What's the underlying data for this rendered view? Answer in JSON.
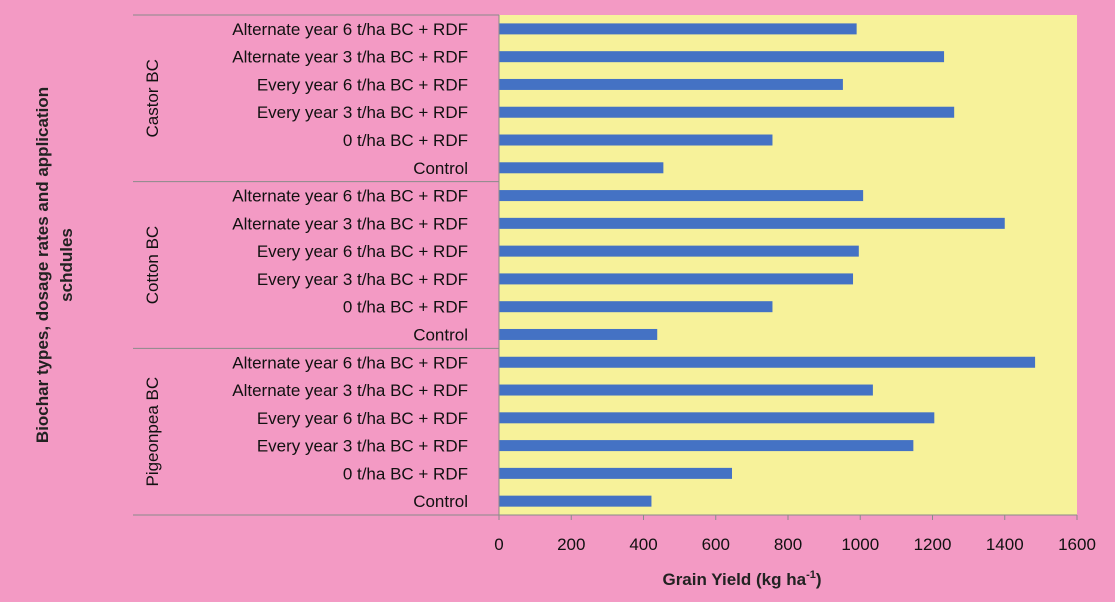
{
  "chart_data": {
    "type": "bar",
    "orientation": "horizontal",
    "title": "",
    "xlabel": "Grain Yield (kg ha",
    "xlabel_superscript": "-1",
    "xlabel_suffix": ")",
    "ylabel_line1": "Biochar types, dosage rates  and application",
    "ylabel_line2": "schdules",
    "xlim": [
      0,
      1600
    ],
    "xticks": [
      0,
      200,
      400,
      600,
      800,
      1000,
      1200,
      1400,
      1600
    ],
    "xtick_labels": [
      "0",
      "200",
      "400",
      "600",
      "800",
      "1000",
      "1200",
      "1400",
      "1600"
    ],
    "grid": false,
    "legend": "none",
    "colors": {
      "bar": "#4472c4",
      "plot_background": "#f7f29a",
      "outer_background": "#f39ac4",
      "axis_line": "#8a8a8a"
    },
    "groups": [
      {
        "name": "Castor BC",
        "categories": [
          "Alternate year  6 t/ha BC + RDF",
          "Alternate year 3 t/ha BC + RDF",
          "Every year  6 t/ha BC + RDF",
          "Every year  3 t/ha BC + RDF",
          "0 t/ha BC + RDF",
          "Control"
        ],
        "values": [
          990,
          1232,
          952,
          1260,
          757,
          455
        ]
      },
      {
        "name": "Cotton BC",
        "categories": [
          "Alternate year  6 t/ha BC + RDF",
          "Alternate year 3 t/ha BC + RDF",
          "Every year  6 t/ha BC + RDF",
          "Every year  3 t/ha BC + RDF",
          "0 t/ha BC + RDF",
          "Control"
        ],
        "values": [
          1008,
          1400,
          996,
          980,
          757,
          438
        ]
      },
      {
        "name": "Pigeonpea BC",
        "categories": [
          "Alternate year  6 t/ha BC + RDF",
          "Alternate year 3 t/ha BC + RDF",
          "Every year  6 t/ha BC + RDF",
          "Every year  3 t/ha BC + RDF",
          "0 t/ha BC + RDF",
          "Control"
        ],
        "values": [
          1484,
          1035,
          1205,
          1147,
          645,
          422
        ]
      }
    ]
  }
}
